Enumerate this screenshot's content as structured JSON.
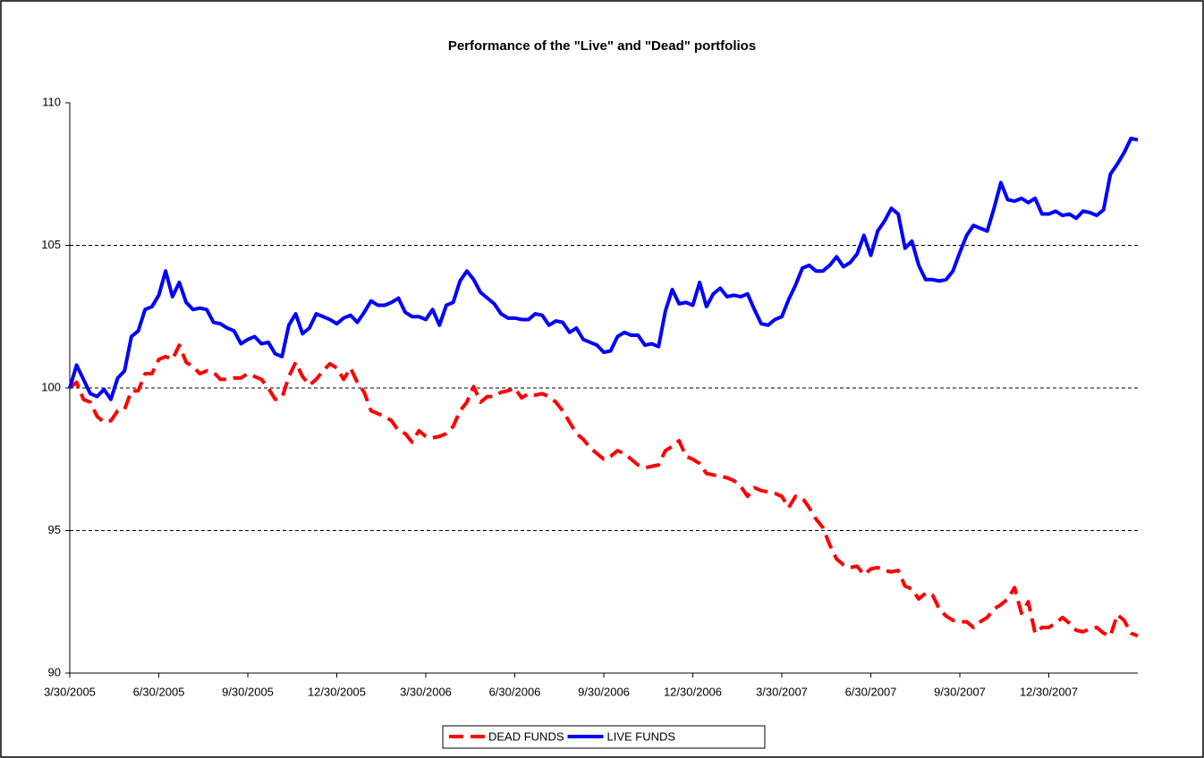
{
  "chart_data": {
    "type": "line",
    "title": "Performance of the \"Live\" and \"Dead\" portfolios",
    "categories": [
      "3/30/2005",
      null,
      null,
      null,
      null,
      null,
      null,
      null,
      null,
      null,
      null,
      null,
      null,
      "6/30/2005",
      null,
      null,
      null,
      null,
      null,
      null,
      null,
      null,
      null,
      null,
      null,
      null,
      "9/30/2005",
      null,
      null,
      null,
      null,
      null,
      null,
      null,
      null,
      null,
      null,
      null,
      null,
      "12/30/2005",
      null,
      null,
      null,
      null,
      null,
      null,
      null,
      null,
      null,
      null,
      null,
      null,
      "3/30/2006",
      null,
      null,
      null,
      null,
      null,
      null,
      null,
      null,
      null,
      null,
      null,
      null,
      "6/30/2006",
      null,
      null,
      null,
      null,
      null,
      null,
      null,
      null,
      null,
      null,
      null,
      null,
      "9/30/2006",
      null,
      null,
      null,
      null,
      null,
      null,
      null,
      null,
      null,
      null,
      null,
      null,
      "12/30/2006",
      null,
      null,
      null,
      null,
      null,
      null,
      null,
      null,
      null,
      null,
      null,
      null,
      "3/30/2007",
      null,
      null,
      null,
      null,
      null,
      null,
      null,
      null,
      null,
      null,
      null,
      null,
      "6/30/2007",
      null,
      null,
      null,
      null,
      null,
      null,
      null,
      null,
      null,
      null,
      null,
      null,
      "9/30/2007",
      null,
      null,
      null,
      null,
      null,
      null,
      null,
      null,
      null,
      null,
      null,
      null,
      "12/30/2007",
      null,
      null,
      null,
      null,
      null,
      null,
      null,
      null,
      null,
      null,
      null,
      null,
      null
    ],
    "series": [
      {
        "name": "DEAD FUNDS",
        "color": "#ff0000",
        "dashed": true,
        "values": [
          100.0,
          100.2,
          99.6,
          99.5,
          99.0,
          98.8,
          98.85,
          99.2,
          99.25,
          99.9,
          99.9,
          100.5,
          100.5,
          101.0,
          101.1,
          101.0,
          101.5,
          100.9,
          100.75,
          100.5,
          100.6,
          100.55,
          100.3,
          100.3,
          100.35,
          100.35,
          100.5,
          100.4,
          100.3,
          100.0,
          99.6,
          99.65,
          100.4,
          100.9,
          100.4,
          100.1,
          100.3,
          100.6,
          100.85,
          100.7,
          100.3,
          100.7,
          100.2,
          99.85,
          99.2,
          99.1,
          99.0,
          98.85,
          98.5,
          98.4,
          98.1,
          98.5,
          98.3,
          98.25,
          98.3,
          98.4,
          98.65,
          99.2,
          99.5,
          100.05,
          99.5,
          99.7,
          99.7,
          99.85,
          99.9,
          100.0,
          99.65,
          99.8,
          99.75,
          99.8,
          99.7,
          99.5,
          99.2,
          98.8,
          98.4,
          98.2,
          97.9,
          97.7,
          97.5,
          97.6,
          97.8,
          97.7,
          97.5,
          97.3,
          97.2,
          97.25,
          97.3,
          97.8,
          97.95,
          98.15,
          97.6,
          97.5,
          97.35,
          97.0,
          96.95,
          96.9,
          96.85,
          96.75,
          96.55,
          96.2,
          96.5,
          96.4,
          96.35,
          96.3,
          96.2,
          95.8,
          96.2,
          96.15,
          95.8,
          95.4,
          95.1,
          94.5,
          94.0,
          93.8,
          93.7,
          93.75,
          93.45,
          93.65,
          93.7,
          93.6,
          93.55,
          93.6,
          93.05,
          92.95,
          92.6,
          92.8,
          92.75,
          92.25,
          92.0,
          91.85,
          91.8,
          91.8,
          91.6,
          91.8,
          91.95,
          92.25,
          92.4,
          92.6,
          93.0,
          92.1,
          92.5,
          91.4,
          91.6,
          91.6,
          91.75,
          91.95,
          91.75,
          91.5,
          91.45,
          91.55,
          91.6,
          91.4,
          91.3,
          92.05,
          91.85,
          91.4,
          91.3
        ]
      },
      {
        "name": "LIVE FUNDS",
        "color": "#0000ff",
        "dashed": false,
        "values": [
          100.0,
          100.8,
          100.3,
          99.8,
          99.7,
          99.95,
          99.6,
          100.35,
          100.6,
          101.8,
          102.0,
          102.75,
          102.85,
          103.25,
          104.1,
          103.2,
          103.7,
          103.0,
          102.75,
          102.8,
          102.75,
          102.3,
          102.25,
          102.1,
          102.0,
          101.55,
          101.7,
          101.8,
          101.55,
          101.6,
          101.2,
          101.1,
          102.2,
          102.6,
          101.9,
          102.1,
          102.6,
          102.5,
          102.4,
          102.25,
          102.45,
          102.55,
          102.3,
          102.65,
          103.05,
          102.9,
          102.9,
          103.0,
          103.15,
          102.65,
          102.5,
          102.5,
          102.4,
          102.75,
          102.2,
          102.9,
          103.0,
          103.75,
          104.1,
          103.8,
          103.35,
          103.15,
          102.95,
          102.6,
          102.45,
          102.45,
          102.4,
          102.4,
          102.6,
          102.55,
          102.2,
          102.35,
          102.3,
          101.95,
          102.1,
          101.7,
          101.6,
          101.5,
          101.25,
          101.3,
          101.8,
          101.95,
          101.85,
          101.85,
          101.5,
          101.55,
          101.45,
          102.7,
          103.45,
          102.95,
          103.0,
          102.9,
          103.7,
          102.85,
          103.3,
          103.5,
          103.2,
          103.25,
          103.2,
          103.3,
          102.75,
          102.25,
          102.2,
          102.4,
          102.5,
          103.1,
          103.6,
          104.2,
          104.3,
          104.1,
          104.1,
          104.3,
          104.6,
          104.25,
          104.4,
          104.7,
          105.35,
          104.65,
          105.5,
          105.85,
          106.3,
          106.1,
          104.9,
          105.15,
          104.3,
          103.8,
          103.8,
          103.75,
          103.8,
          104.1,
          104.75,
          105.35,
          105.7,
          105.6,
          105.5,
          106.3,
          107.2,
          106.6,
          106.55,
          106.65,
          106.5,
          106.65,
          106.1,
          106.1,
          106.2,
          106.05,
          106.1,
          105.95,
          106.2,
          106.15,
          106.05,
          106.25,
          107.5,
          107.85,
          108.25,
          108.75,
          108.7
        ]
      }
    ],
    "ylim": [
      90,
      110
    ],
    "yticks": [
      90,
      95,
      100,
      105,
      110
    ],
    "grid": true,
    "legend": "bottom"
  }
}
